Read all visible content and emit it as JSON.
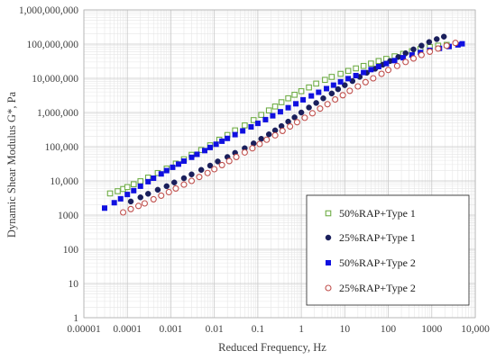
{
  "chart_data": {
    "type": "scatter",
    "xlabel": "Reduced Frequency, Hz",
    "ylabel": "Dynamic Shear Modulus G*, Pa",
    "x_scale": "log",
    "y_scale": "log",
    "xlim": [
      1e-05,
      10000
    ],
    "ylim": [
      1,
      1000000000
    ],
    "grid": true,
    "legend_position": "bottom-right",
    "x_ticks": [
      "0.00001",
      "0.0001",
      "0.001",
      "0.01",
      "0.1",
      "1",
      "10",
      "100",
      "1000",
      "10,000"
    ],
    "y_ticks": [
      "1",
      "10",
      "100",
      "1000",
      "10,000",
      "100,000",
      "1,000,000",
      "10,000,000",
      "100,000,000",
      "1,000,000,000"
    ],
    "series": [
      {
        "name": "50%RAP+Type 1",
        "marker": "open-square",
        "color": "#70ad47",
        "points": [
          [
            4e-05,
            4300
          ],
          [
            6e-05,
            5000
          ],
          [
            8e-05,
            5800
          ],
          [
            0.0001,
            6600
          ],
          [
            0.00014,
            8000
          ],
          [
            0.0002,
            9800
          ],
          [
            0.0003,
            12500
          ],
          [
            0.0005,
            17000
          ],
          [
            0.0008,
            23000
          ],
          [
            0.0013,
            32000
          ],
          [
            0.002,
            43000
          ],
          [
            0.003,
            58000
          ],
          [
            0.005,
            80000
          ],
          [
            0.008,
            110000
          ],
          [
            0.013,
            160000
          ],
          [
            0.02,
            220000
          ],
          [
            0.03,
            300000
          ],
          [
            0.05,
            420000
          ],
          [
            0.08,
            600000
          ],
          [
            0.12,
            850000
          ],
          [
            0.18,
            1150000
          ],
          [
            0.25,
            1500000
          ],
          [
            0.35,
            2000000
          ],
          [
            0.5,
            2600000
          ],
          [
            0.7,
            3300000
          ],
          [
            1,
            4200000
          ],
          [
            1.5,
            5400000
          ],
          [
            2.2,
            7000000
          ],
          [
            3.5,
            9000000
          ],
          [
            5,
            11000000
          ],
          [
            8,
            13500000
          ],
          [
            12,
            16500000
          ],
          [
            18,
            19500000
          ],
          [
            27,
            23000000
          ],
          [
            40,
            27000000
          ],
          [
            60,
            32000000
          ],
          [
            90,
            37000000
          ],
          [
            140,
            44000000
          ],
          [
            220,
            52000000
          ],
          [
            350,
            62000000
          ],
          [
            550,
            72000000
          ],
          [
            900,
            82000000
          ],
          [
            1400,
            90000000
          ],
          [
            2200,
            95000000
          ]
        ]
      },
      {
        "name": "25%RAP+Type 1",
        "marker": "filled-circle",
        "color": "#1a1f5c",
        "points": [
          [
            0.00012,
            2500
          ],
          [
            0.0002,
            3300
          ],
          [
            0.0003,
            4200
          ],
          [
            0.0005,
            5500
          ],
          [
            0.0008,
            7000
          ],
          [
            0.0012,
            9000
          ],
          [
            0.002,
            12000
          ],
          [
            0.003,
            15500
          ],
          [
            0.005,
            21000
          ],
          [
            0.008,
            28000
          ],
          [
            0.012,
            37000
          ],
          [
            0.02,
            50000
          ],
          [
            0.03,
            66000
          ],
          [
            0.05,
            90000
          ],
          [
            0.08,
            125000
          ],
          [
            0.12,
            170000
          ],
          [
            0.18,
            230000
          ],
          [
            0.25,
            300000
          ],
          [
            0.35,
            400000
          ],
          [
            0.5,
            540000
          ],
          [
            0.7,
            720000
          ],
          [
            1,
            1000000
          ],
          [
            1.5,
            1400000
          ],
          [
            2.2,
            1900000
          ],
          [
            3.2,
            2600000
          ],
          [
            5,
            3600000
          ],
          [
            7,
            4800000
          ],
          [
            10,
            6300000
          ],
          [
            15,
            8300000
          ],
          [
            22,
            11000000
          ],
          [
            32,
            14500000
          ],
          [
            50,
            19000000
          ],
          [
            75,
            25000000
          ],
          [
            110,
            32000000
          ],
          [
            170,
            42000000
          ],
          [
            250,
            54000000
          ],
          [
            380,
            70000000
          ],
          [
            580,
            90000000
          ],
          [
            870,
            115000000
          ],
          [
            1300,
            140000000
          ],
          [
            1900,
            165000000
          ]
        ]
      },
      {
        "name": "50%RAP+Type 2",
        "marker": "filled-square",
        "color": "#1010e0",
        "points": [
          [
            3e-05,
            1600
          ],
          [
            5e-05,
            2300
          ],
          [
            7e-05,
            3000
          ],
          [
            0.0001,
            4000
          ],
          [
            0.00014,
            5200
          ],
          [
            0.0002,
            7000
          ],
          [
            0.0003,
            9500
          ],
          [
            0.0004,
            12000
          ],
          [
            0.0006,
            16000
          ],
          [
            0.0008,
            20000
          ],
          [
            0.0011,
            25000
          ],
          [
            0.0015,
            31000
          ],
          [
            0.002,
            38000
          ],
          [
            0.003,
            49000
          ],
          [
            0.004,
            60000
          ],
          [
            0.006,
            77000
          ],
          [
            0.008,
            95000
          ],
          [
            0.011,
            118000
          ],
          [
            0.015,
            145000
          ],
          [
            0.02,
            175000
          ],
          [
            0.03,
            225000
          ],
          [
            0.045,
            290000
          ],
          [
            0.07,
            380000
          ],
          [
            0.1,
            480000
          ],
          [
            0.15,
            620000
          ],
          [
            0.22,
            800000
          ],
          [
            0.33,
            1050000
          ],
          [
            0.5,
            1380000
          ],
          [
            0.75,
            1800000
          ],
          [
            1.1,
            2350000
          ],
          [
            1.7,
            3050000
          ],
          [
            2.5,
            3900000
          ],
          [
            3.8,
            5000000
          ],
          [
            5.5,
            6300000
          ],
          [
            8,
            7900000
          ],
          [
            12,
            9800000
          ],
          [
            18,
            12000000
          ],
          [
            27,
            14700000
          ],
          [
            40,
            18000000
          ],
          [
            60,
            22000000
          ],
          [
            90,
            27000000
          ],
          [
            140,
            33000000
          ],
          [
            220,
            40000000
          ],
          [
            350,
            48000000
          ],
          [
            550,
            57000000
          ],
          [
            900,
            66000000
          ],
          [
            1500,
            75000000
          ],
          [
            2500,
            85000000
          ],
          [
            4000,
            95000000
          ],
          [
            5000,
            102000000
          ]
        ]
      },
      {
        "name": "25%RAP+Type 2",
        "marker": "open-circle",
        "color": "#c0504d",
        "points": [
          [
            8e-05,
            1200
          ],
          [
            0.00012,
            1500
          ],
          [
            0.00018,
            1850
          ],
          [
            0.00025,
            2200
          ],
          [
            0.0004,
            2900
          ],
          [
            0.0006,
            3700
          ],
          [
            0.0009,
            4700
          ],
          [
            0.0013,
            6000
          ],
          [
            0.002,
            7800
          ],
          [
            0.003,
            10000
          ],
          [
            0.0045,
            13000
          ],
          [
            0.007,
            17000
          ],
          [
            0.01,
            22000
          ],
          [
            0.015,
            29000
          ],
          [
            0.022,
            38000
          ],
          [
            0.032,
            50000
          ],
          [
            0.05,
            68000
          ],
          [
            0.075,
            90000
          ],
          [
            0.11,
            120000
          ],
          [
            0.16,
            160000
          ],
          [
            0.25,
            215000
          ],
          [
            0.37,
            290000
          ],
          [
            0.55,
            390000
          ],
          [
            0.8,
            520000
          ],
          [
            1.2,
            700000
          ],
          [
            1.8,
            950000
          ],
          [
            2.7,
            1300000
          ],
          [
            4,
            1750000
          ],
          [
            6,
            2400000
          ],
          [
            9,
            3200000
          ],
          [
            13,
            4300000
          ],
          [
            20,
            5800000
          ],
          [
            30,
            7700000
          ],
          [
            45,
            10000000
          ],
          [
            70,
            13500000
          ],
          [
            100,
            17500000
          ],
          [
            160,
            23000000
          ],
          [
            250,
            30000000
          ],
          [
            380,
            38000000
          ],
          [
            580,
            48000000
          ],
          [
            900,
            60000000
          ],
          [
            1400,
            74000000
          ],
          [
            2200,
            90000000
          ],
          [
            3500,
            108000000
          ]
        ]
      }
    ]
  }
}
